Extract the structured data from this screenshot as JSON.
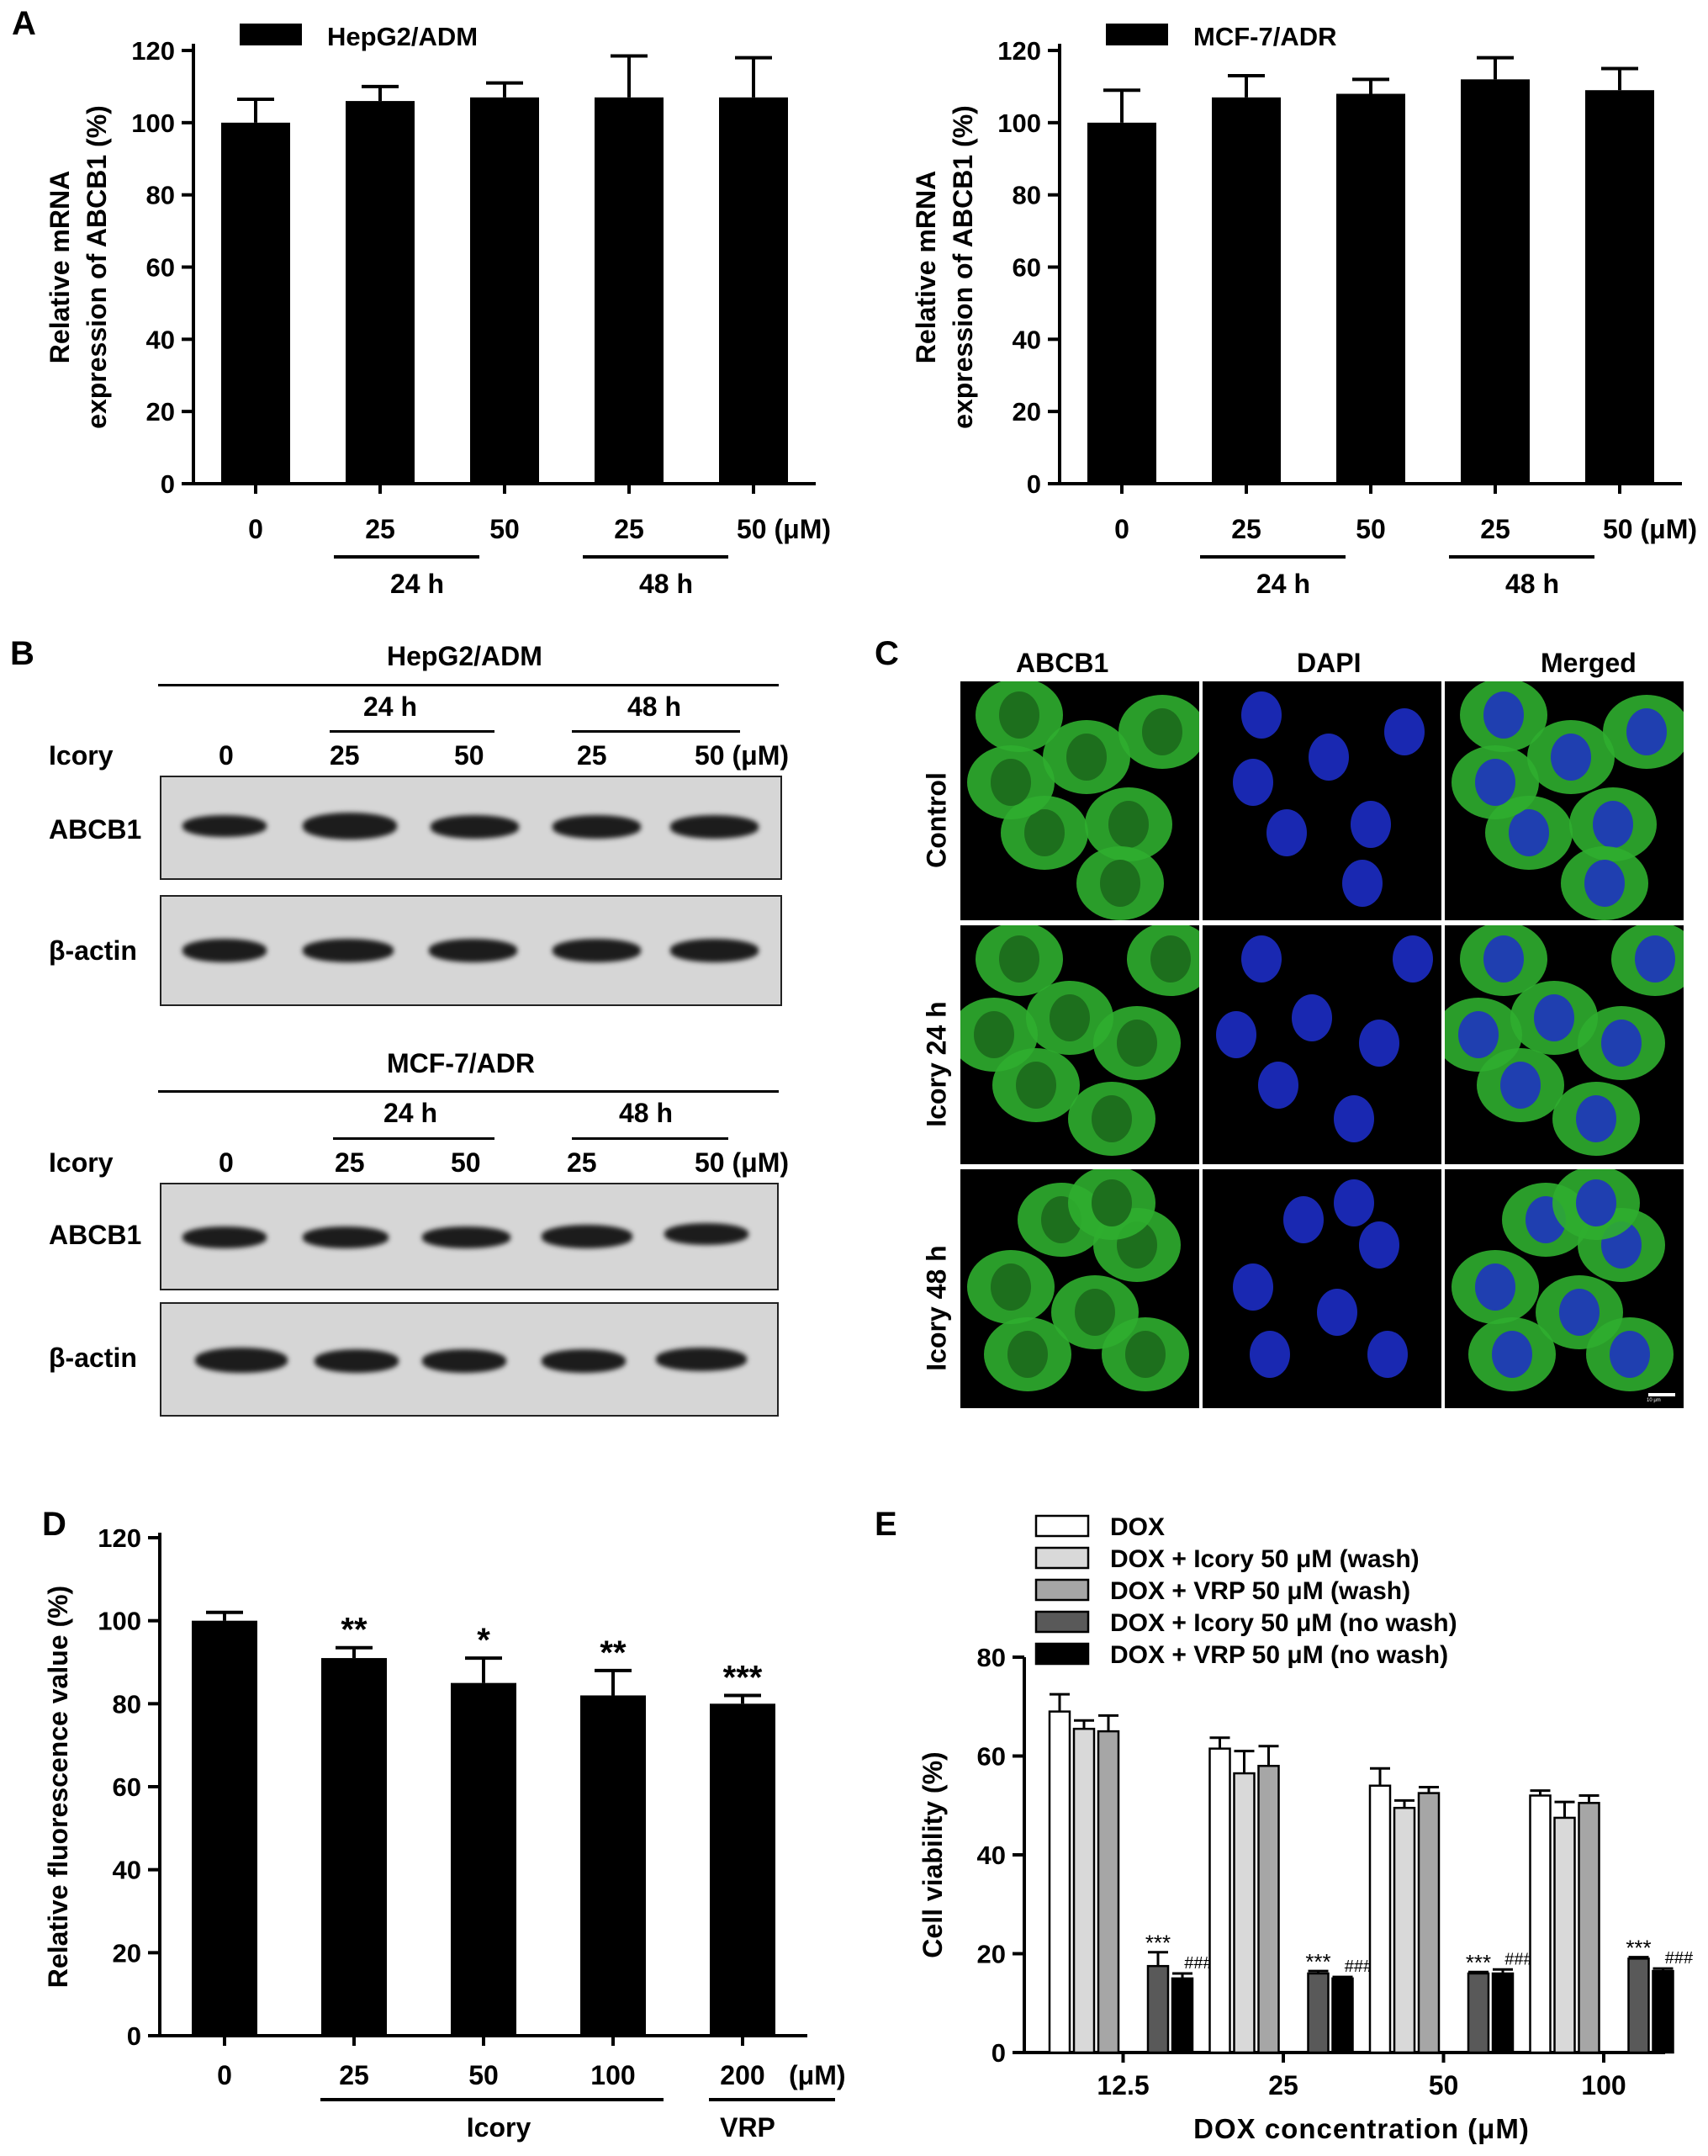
{
  "panels": {
    "A": "A",
    "B": "B",
    "C": "C",
    "D": "D",
    "E": "E"
  },
  "chart_data": [
    {
      "id": "A1",
      "type": "bar",
      "legend": "HepG2/ADM",
      "ylabel_line1": "Relative mRNA",
      "ylabel_line2": "expression of ABCB1 (%)",
      "ylim": [
        0,
        120
      ],
      "yticks": [
        0,
        20,
        40,
        60,
        80,
        100,
        120
      ],
      "categories": [
        "0",
        "25",
        "50",
        "25",
        "50 (μM)"
      ],
      "group_labels": [
        "24 h",
        "48 h"
      ],
      "values": [
        100,
        106,
        107,
        107,
        107
      ],
      "errors": [
        6.5,
        4,
        4,
        11.5,
        11
      ]
    },
    {
      "id": "A2",
      "type": "bar",
      "legend": "MCF-7/ADR",
      "ylabel_line1": "Relative mRNA",
      "ylabel_line2": "expression of ABCB1 (%)",
      "ylim": [
        0,
        120
      ],
      "yticks": [
        0,
        20,
        40,
        60,
        80,
        100,
        120
      ],
      "categories": [
        "0",
        "25",
        "50",
        "25",
        "50 (μM)"
      ],
      "group_labels": [
        "24 h",
        "48 h"
      ],
      "values": [
        100,
        107,
        108,
        112,
        109
      ],
      "errors": [
        9,
        6,
        4,
        6,
        6
      ]
    },
    {
      "id": "D",
      "type": "bar",
      "ylabel": "Relative fluorescence value (%)",
      "ylim": [
        0,
        120
      ],
      "yticks": [
        0,
        20,
        40,
        60,
        80,
        100,
        120
      ],
      "categories": [
        "0",
        "25",
        "50",
        "100",
        "200"
      ],
      "unit": "(μM)",
      "group_labels": [
        "Icory",
        "VRP"
      ],
      "values": [
        100,
        91,
        85,
        82,
        80
      ],
      "errors": [
        2,
        2.5,
        6,
        6,
        2
      ],
      "annotations": [
        "",
        "**",
        "*",
        "**",
        "***"
      ]
    },
    {
      "id": "E",
      "type": "bar",
      "ylabel": "Cell viability (%)",
      "xlabel": "DOX concentration (μM)",
      "ylim": [
        0,
        80
      ],
      "yticks": [
        0,
        20,
        40,
        60,
        80
      ],
      "categories": [
        "12.5",
        "25",
        "50",
        "100"
      ],
      "series": [
        {
          "name": "DOX",
          "color": "#ffffff",
          "values": [
            69,
            61.5,
            54,
            52
          ],
          "errors": [
            3.5,
            2.2,
            3.5,
            1
          ]
        },
        {
          "name": "DOX + Icory 50 μM (wash)",
          "color": "#d9d9d9",
          "values": [
            65.5,
            56.5,
            49.5,
            47.5
          ],
          "errors": [
            1.7,
            4.5,
            1.5,
            3.2
          ]
        },
        {
          "name": "DOX + VRP 50 μM (wash)",
          "color": "#a6a6a6",
          "values": [
            65,
            58,
            52.5,
            50.5
          ],
          "errors": [
            3.2,
            4,
            1.2,
            1.5
          ]
        },
        {
          "name": "DOX + Icory 50 μM  (no wash)",
          "color": "#595959",
          "values": [
            17.5,
            16,
            16,
            19
          ],
          "errors": [
            2.8,
            0.5,
            0.3,
            0.3
          ]
        },
        {
          "name": "DOX + VRP 50 μM (no wash)",
          "color": "#000000",
          "values": [
            15,
            15,
            16,
            16.5
          ],
          "errors": [
            1,
            0.3,
            0.8,
            0.5
          ]
        }
      ],
      "annotations": {
        "icory_nowash": "***",
        "vrp_nowash": "###"
      }
    }
  ],
  "westernB": {
    "blots": [
      {
        "cell_line": "HepG2/ADM",
        "time_labels": [
          "24 h",
          "48 h"
        ],
        "treatment_label": "Icory",
        "doses": [
          "0",
          "25",
          "50",
          "25",
          "50 (μM)"
        ],
        "rows": [
          "ABCB1",
          "β-actin"
        ]
      },
      {
        "cell_line": "MCF-7/ADR",
        "time_labels": [
          "24 h",
          "48 h"
        ],
        "treatment_label": "Icory",
        "doses": [
          "0",
          "25",
          "50",
          "25",
          "50 (μM)"
        ],
        "rows": [
          "ABCB1",
          "β-actin"
        ]
      }
    ]
  },
  "microscopyC": {
    "columns": [
      "ABCB1",
      "DAPI",
      "Merged"
    ],
    "rows": [
      "Control",
      "Icory 24 h",
      "Icory 48 h"
    ],
    "scale_bar": "10 μm"
  }
}
